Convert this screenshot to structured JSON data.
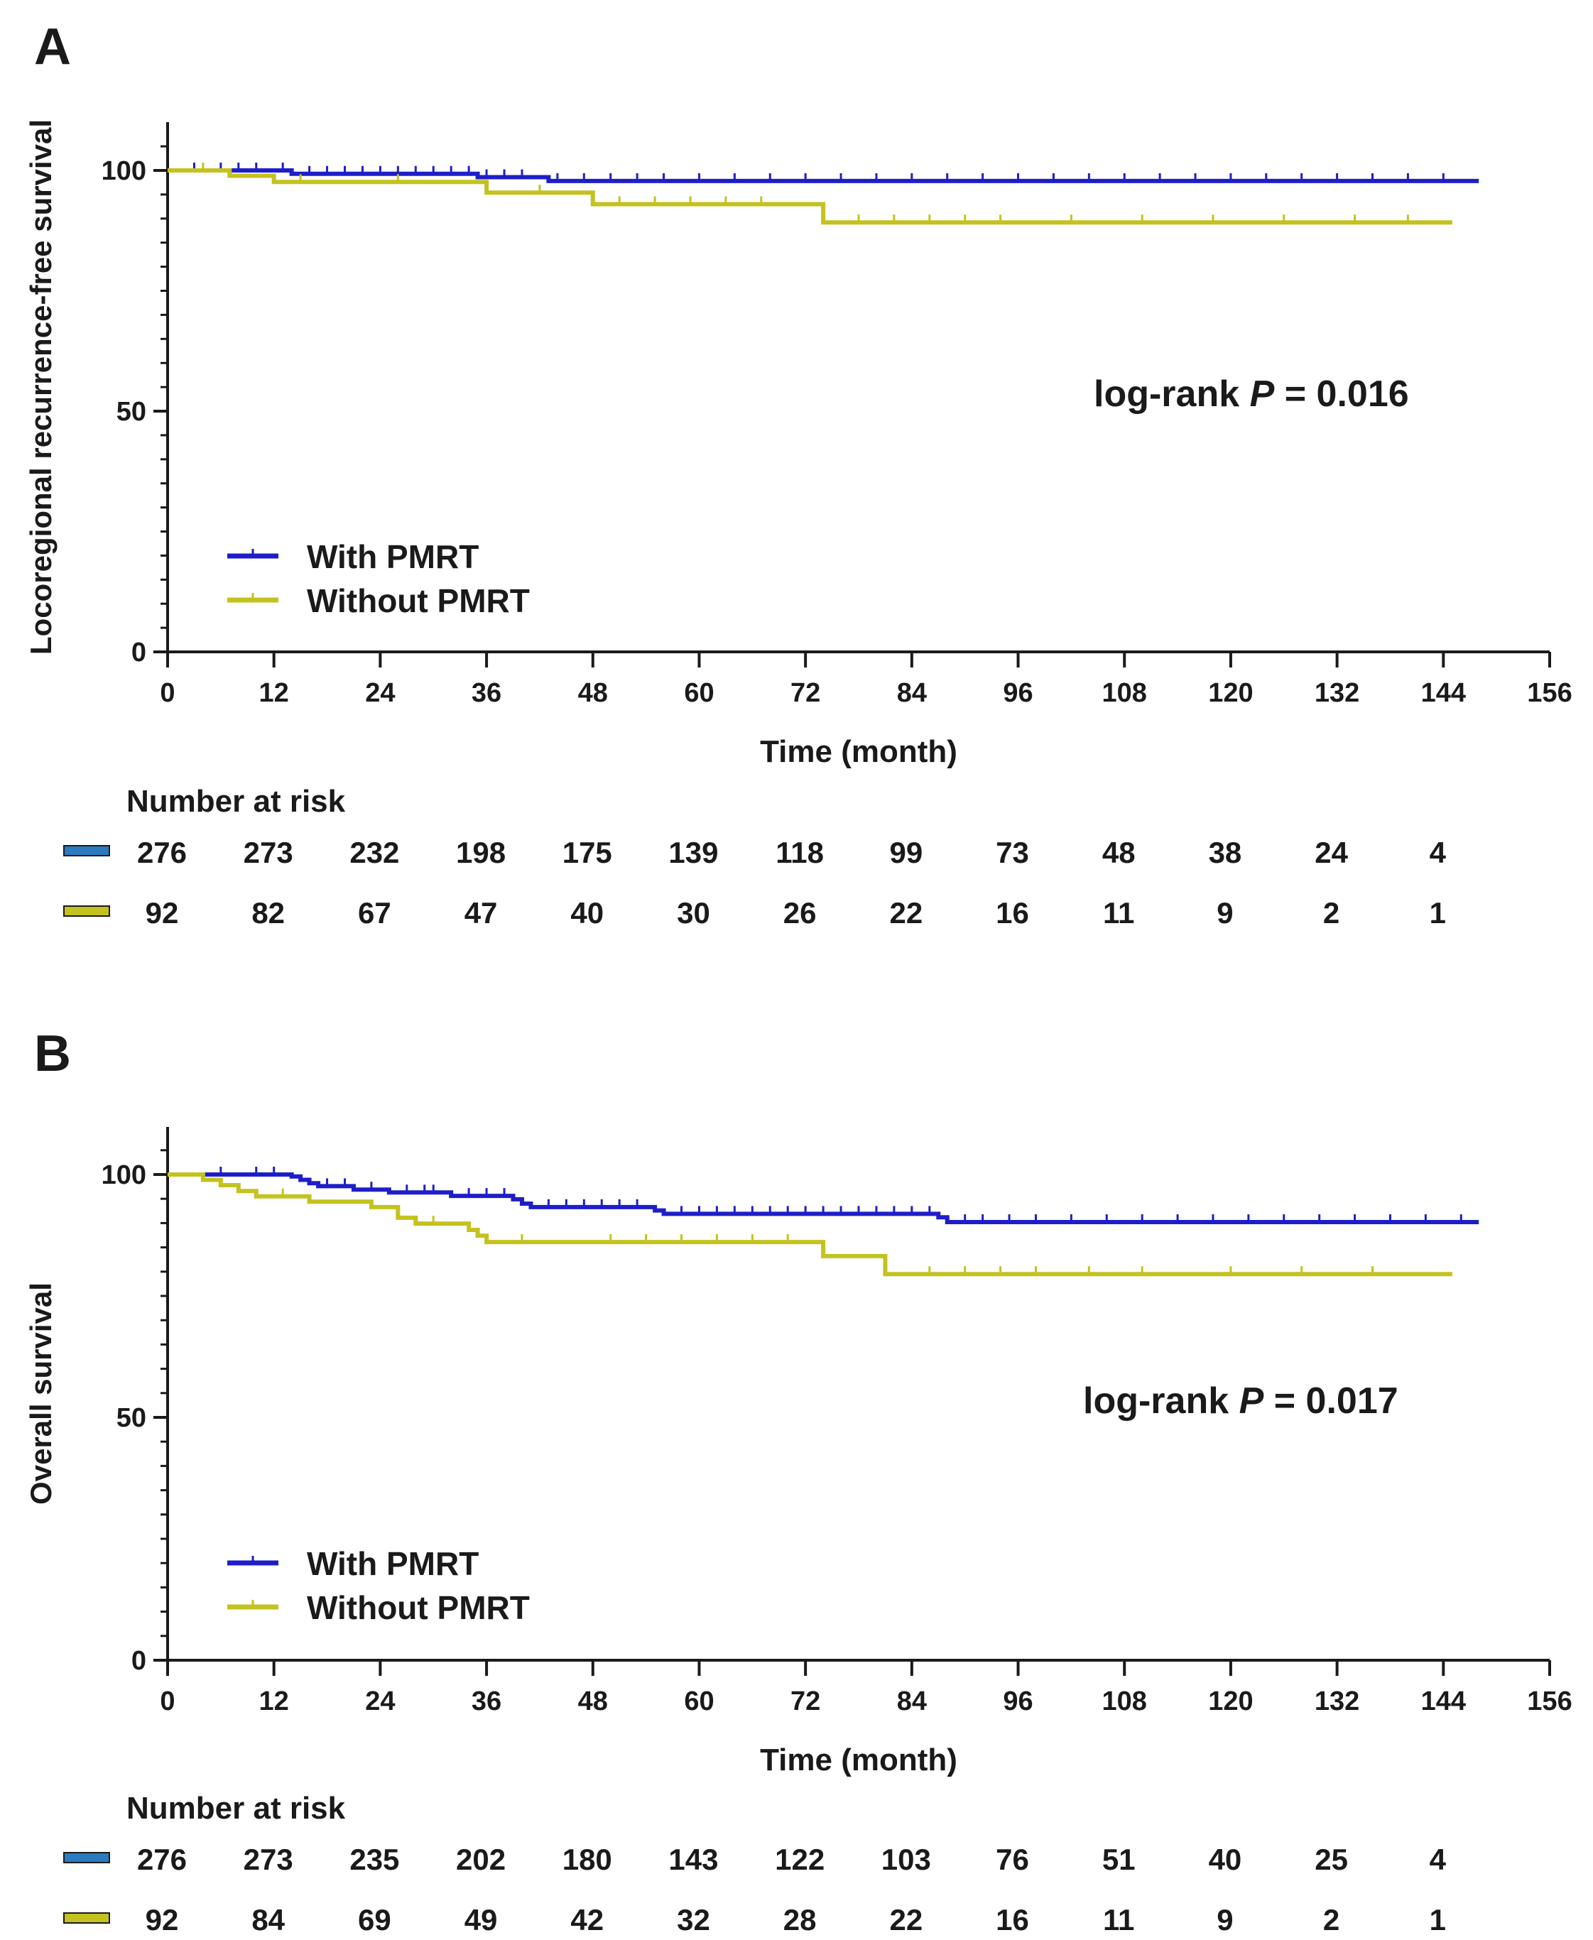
{
  "colors": {
    "with": "#1e1ec8",
    "without": "#c4c21e",
    "with_swatch": "#2a7bbf",
    "without_swatch": "#c4c21e",
    "axis": "#1a1a1a"
  },
  "chart_data": [
    {
      "type": "line",
      "panel_label": "A",
      "ylabel": "Locoregional recurrence-free survival",
      "xlabel": "Time (month)",
      "xlim": [
        0,
        156
      ],
      "ylim": [
        0,
        110
      ],
      "xticks": [
        0,
        12,
        24,
        36,
        48,
        60,
        72,
        84,
        96,
        108,
        120,
        132,
        144,
        156
      ],
      "xtick_labels": [
        "0",
        "12",
        "24",
        "36",
        "48",
        "60",
        "72",
        "84",
        "96",
        "108",
        "120",
        "132",
        "144",
        "156"
      ],
      "yticks": [
        0,
        50,
        100
      ],
      "ytick_labels": [
        "0",
        "50",
        "100"
      ],
      "annotation": {
        "prefix": "log-rank ",
        "p_symbol": "P",
        "suffix": " = 0.016"
      },
      "legend": {
        "position": "bottom-left",
        "entries": [
          "With PMRT",
          "Without PMRT"
        ]
      },
      "series": [
        {
          "name": "With PMRT",
          "color_key": "with",
          "steps": [
            [
              0,
              100
            ],
            [
              14,
              99.3
            ],
            [
              35,
              98.6
            ],
            [
              43,
              97.8
            ],
            [
              148,
              97.8
            ]
          ],
          "censor": [
            3,
            6,
            8,
            10,
            13,
            16,
            18,
            20,
            22,
            24,
            26,
            28,
            30,
            32,
            34,
            36,
            38,
            40,
            44,
            47,
            50,
            53,
            56,
            60,
            64,
            68,
            72,
            76,
            80,
            84,
            88,
            92,
            96,
            100,
            104,
            108,
            112,
            116,
            120,
            124,
            128,
            132,
            136,
            140,
            144
          ]
        },
        {
          "name": "Without PMRT",
          "color_key": "without",
          "steps": [
            [
              0,
              100
            ],
            [
              7,
              98.9
            ],
            [
              12,
              97.6
            ],
            [
              36,
              95.4
            ],
            [
              48,
              93.0
            ],
            [
              74,
              89.2
            ],
            [
              145,
              89.2
            ]
          ],
          "censor": [
            4,
            15,
            26,
            42,
            51,
            55,
            59,
            63,
            67,
            78,
            82,
            86,
            90,
            94,
            102,
            110,
            118,
            126,
            134,
            140
          ]
        }
      ],
      "risk_table": {
        "title": "Number at risk",
        "times": [
          0,
          12,
          24,
          36,
          48,
          60,
          72,
          84,
          96,
          108,
          120,
          132,
          144
        ],
        "rows": [
          {
            "name": "With PMRT",
            "color_key": "with_swatch",
            "values": [
              "276",
              "273",
              "232",
              "198",
              "175",
              "139",
              "118",
              "99",
              "73",
              "48",
              "38",
              "24",
              "4"
            ]
          },
          {
            "name": "Without PMRT",
            "color_key": "without_swatch",
            "values": [
              "92",
              "82",
              "67",
              "47",
              "40",
              "30",
              "26",
              "22",
              "16",
              "11",
              "9",
              "2",
              "1"
            ]
          }
        ]
      }
    },
    {
      "type": "line",
      "panel_label": "B",
      "ylabel": "Overall survival",
      "xlabel": "Time (month)",
      "xlim": [
        0,
        156
      ],
      "ylim": [
        0,
        110
      ],
      "xticks": [
        0,
        12,
        24,
        36,
        48,
        60,
        72,
        84,
        96,
        108,
        120,
        132,
        144,
        156
      ],
      "xtick_labels": [
        "0",
        "12",
        "24",
        "36",
        "48",
        "60",
        "72",
        "84",
        "96",
        "108",
        "120",
        "132",
        "144",
        "156"
      ],
      "yticks": [
        0,
        50,
        100
      ],
      "ytick_labels": [
        "0",
        "50",
        "100"
      ],
      "annotation": {
        "prefix": "log-rank ",
        "p_symbol": "P",
        "suffix": " = 0.017"
      },
      "legend": {
        "position": "bottom-left",
        "entries": [
          "With PMRT",
          "Without PMRT"
        ]
      },
      "series": [
        {
          "name": "With PMRT",
          "color_key": "with",
          "steps": [
            [
              0,
              100
            ],
            [
              14,
              99.6
            ],
            [
              15,
              98.9
            ],
            [
              16,
              98.2
            ],
            [
              17,
              97.6
            ],
            [
              21,
              96.9
            ],
            [
              25,
              96.3
            ],
            [
              32,
              95.6
            ],
            [
              39,
              94.9
            ],
            [
              40,
              94.0
            ],
            [
              41,
              93.3
            ],
            [
              55,
              92.6
            ],
            [
              56,
              91.9
            ],
            [
              87,
              91.2
            ],
            [
              88,
              90.2
            ],
            [
              148,
              90.2
            ]
          ],
          "censor": [
            6,
            10,
            12,
            18,
            20,
            23,
            27,
            29,
            30,
            34,
            36,
            38,
            43,
            45,
            47,
            49,
            51,
            53,
            58,
            60,
            62,
            64,
            66,
            68,
            70,
            72,
            74,
            76,
            78,
            80,
            82,
            84,
            86,
            90,
            92,
            95,
            98,
            102,
            106,
            110,
            114,
            118,
            122,
            126,
            130,
            134,
            138,
            142,
            146
          ]
        },
        {
          "name": "Without PMRT",
          "color_key": "without",
          "steps": [
            [
              0,
              100
            ],
            [
              4,
              98.9
            ],
            [
              6,
              97.8
            ],
            [
              8,
              96.6
            ],
            [
              10,
              95.5
            ],
            [
              16,
              94.4
            ],
            [
              23,
              93.3
            ],
            [
              26,
              91.1
            ],
            [
              28,
              89.9
            ],
            [
              34,
              88.6
            ],
            [
              35,
              87.4
            ],
            [
              36,
              86.1
            ],
            [
              74,
              83.2
            ],
            [
              81,
              79.5
            ],
            [
              145,
              79.5
            ]
          ],
          "censor": [
            13,
            30,
            40,
            50,
            54,
            58,
            62,
            66,
            70,
            86,
            90,
            94,
            98,
            104,
            110,
            120,
            128,
            136
          ]
        }
      ],
      "risk_table": {
        "title": "Number at risk",
        "times": [
          0,
          12,
          24,
          36,
          48,
          60,
          72,
          84,
          96,
          108,
          120,
          132,
          144
        ],
        "rows": [
          {
            "name": "With PMRT",
            "color_key": "with_swatch",
            "values": [
              "276",
              "273",
              "235",
              "202",
              "180",
              "143",
              "122",
              "103",
              "76",
              "51",
              "40",
              "25",
              "4"
            ]
          },
          {
            "name": "Without PMRT",
            "color_key": "without_swatch",
            "values": [
              "92",
              "84",
              "69",
              "49",
              "42",
              "32",
              "28",
              "22",
              "16",
              "11",
              "9",
              "2",
              "1"
            ]
          }
        ]
      }
    }
  ]
}
